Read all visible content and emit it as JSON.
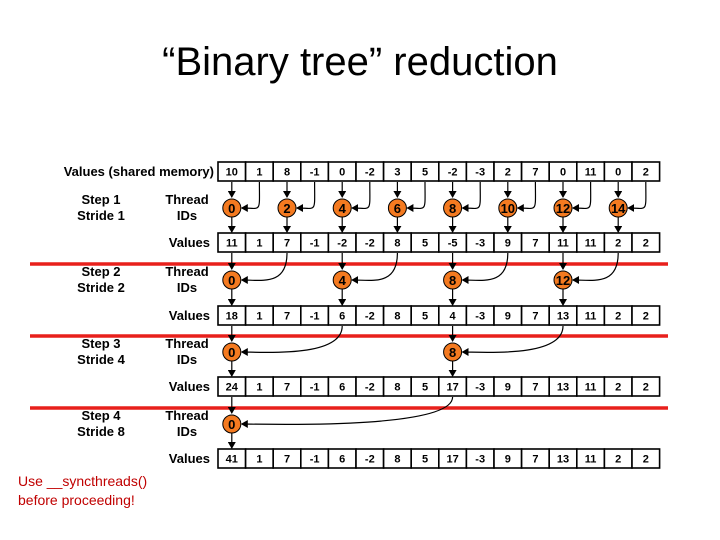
{
  "title": "“Binary tree” reduction",
  "header_label": "Values (shared memory)",
  "initial_values": [
    "10",
    "1",
    "8",
    "-1",
    "0",
    "-2",
    "3",
    "5",
    "-2",
    "-3",
    "2",
    "7",
    "0",
    "11",
    "0",
    "2"
  ],
  "steps": [
    {
      "step_label": "Step 1",
      "stride_label": "Stride 1",
      "thread_ids_label": "Thread IDs",
      "values_label": "Values",
      "threads": [
        {
          "id": "0",
          "col": 0
        },
        {
          "id": "2",
          "col": 2
        },
        {
          "id": "4",
          "col": 4
        },
        {
          "id": "6",
          "col": 6
        },
        {
          "id": "8",
          "col": 8
        },
        {
          "id": "10",
          "col": 10
        },
        {
          "id": "12",
          "col": 12
        },
        {
          "id": "14",
          "col": 14
        }
      ],
      "stride": 1,
      "values": [
        "11",
        "1",
        "7",
        "-1",
        "-2",
        "-2",
        "8",
        "5",
        "-5",
        "-3",
        "9",
        "7",
        "11",
        "11",
        "2",
        "2"
      ]
    },
    {
      "step_label": "Step 2",
      "stride_label": "Stride 2",
      "thread_ids_label": "Thread IDs",
      "values_label": "Values",
      "threads": [
        {
          "id": "0",
          "col": 0
        },
        {
          "id": "4",
          "col": 4
        },
        {
          "id": "8",
          "col": 8
        },
        {
          "id": "12",
          "col": 12
        }
      ],
      "stride": 2,
      "values": [
        "18",
        "1",
        "7",
        "-1",
        "6",
        "-2",
        "8",
        "5",
        "4",
        "-3",
        "9",
        "7",
        "13",
        "11",
        "2",
        "2"
      ]
    },
    {
      "step_label": "Step 3",
      "stride_label": "Stride 4",
      "thread_ids_label": "Thread IDs",
      "values_label": "Values",
      "threads": [
        {
          "id": "0",
          "col": 0
        },
        {
          "id": "8",
          "col": 8
        }
      ],
      "stride": 4,
      "values": [
        "24",
        "1",
        "7",
        "-1",
        "6",
        "-2",
        "8",
        "5",
        "17",
        "-3",
        "9",
        "7",
        "13",
        "11",
        "2",
        "2"
      ]
    },
    {
      "step_label": "Step 4",
      "stride_label": "Stride 8",
      "thread_ids_label": "Thread IDs",
      "values_label": "Values",
      "threads": [
        {
          "id": "0",
          "col": 0
        }
      ],
      "stride": 8,
      "values": [
        "41",
        "1",
        "7",
        "-1",
        "6",
        "-2",
        "8",
        "5",
        "17",
        "-3",
        "9",
        "7",
        "13",
        "11",
        "2",
        "2"
      ]
    }
  ],
  "note": {
    "line1": "Use __syncthreads()",
    "line2": "before proceeding!"
  },
  "colors": {
    "separator": "#e8201c",
    "thread_fill": "#f47a20",
    "cell_border": "#000000"
  }
}
